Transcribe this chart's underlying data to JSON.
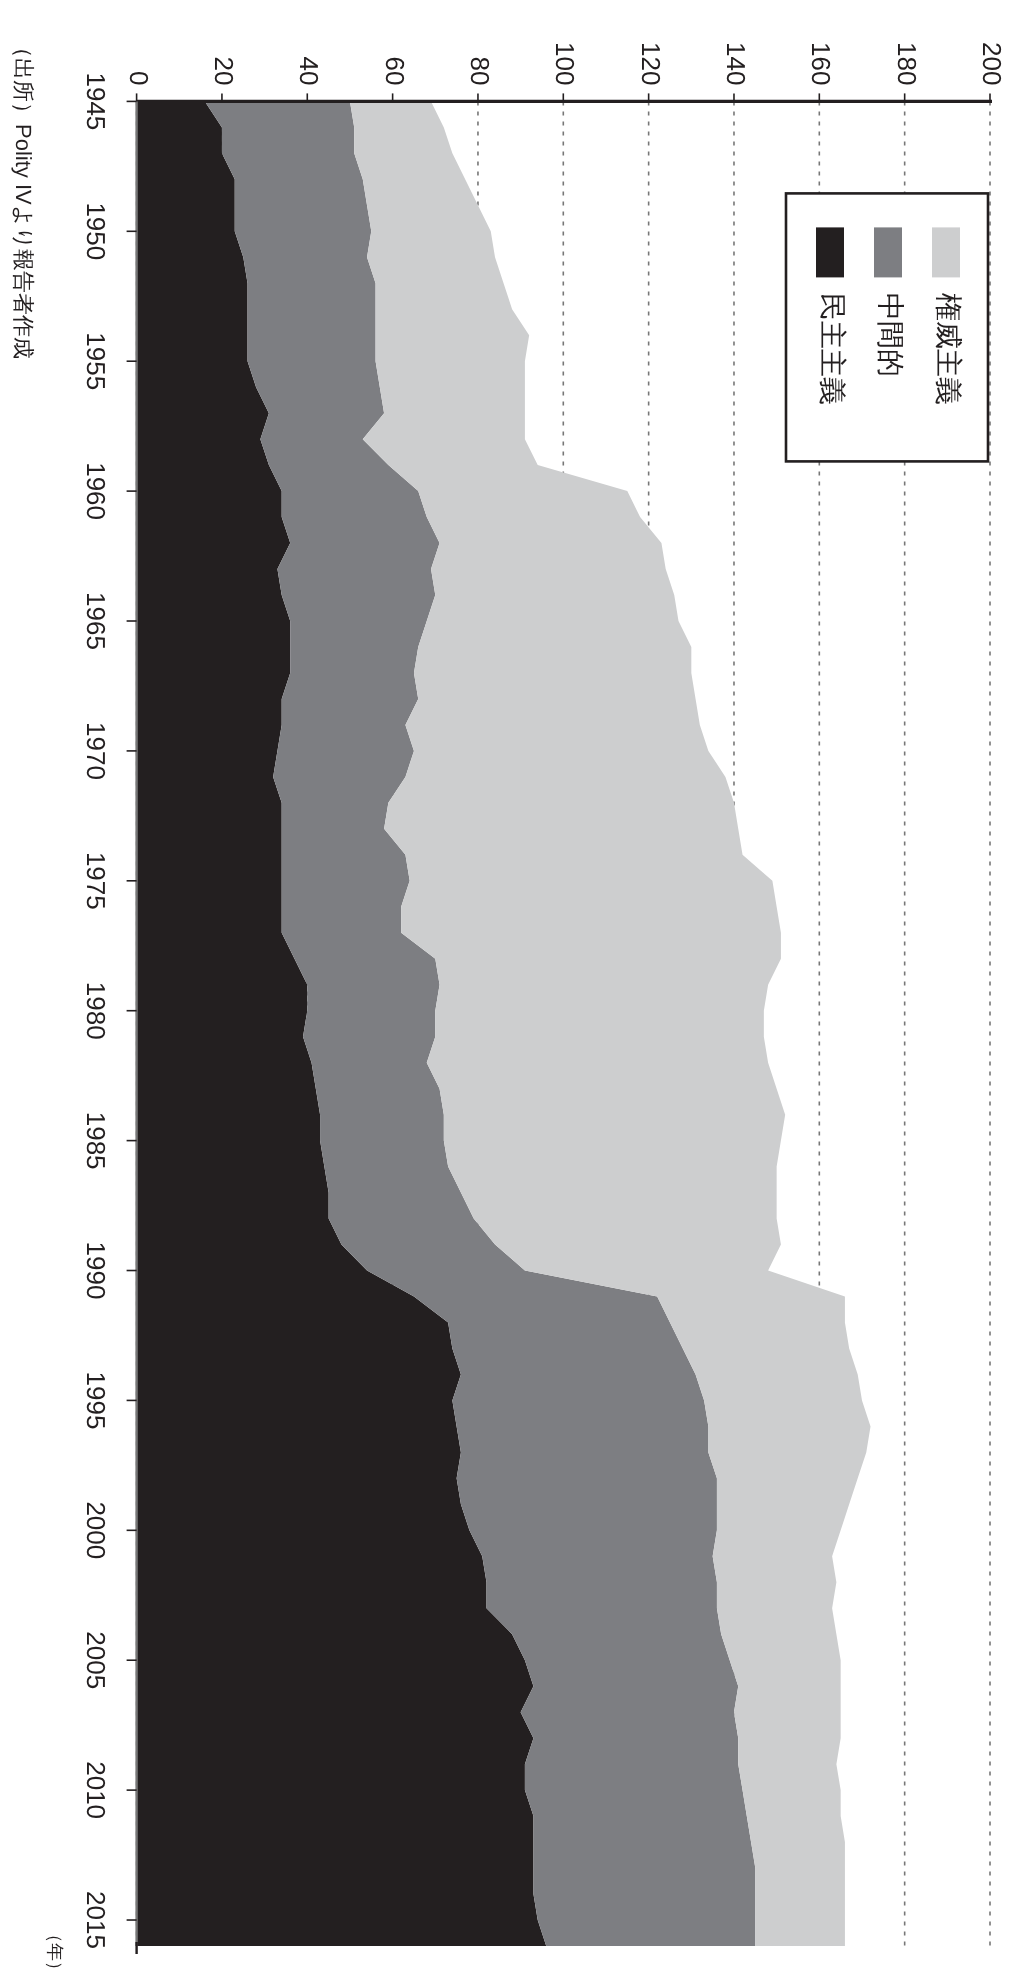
{
  "chart_data": {
    "type": "area",
    "stacked": true,
    "ylabel": "（年）",
    "annotations": [
      "（出所）Polity IVより報告者作成"
    ],
    "x": [
      1945,
      1946,
      1947,
      1948,
      1949,
      1950,
      1951,
      1952,
      1953,
      1954,
      1955,
      1956,
      1957,
      1958,
      1959,
      1960,
      1961,
      1962,
      1963,
      1964,
      1965,
      1966,
      1967,
      1968,
      1969,
      1970,
      1971,
      1972,
      1973,
      1974,
      1975,
      1976,
      1977,
      1978,
      1979,
      1980,
      1981,
      1982,
      1983,
      1984,
      1985,
      1986,
      1987,
      1988,
      1989,
      1990,
      1991,
      1992,
      1993,
      1994,
      1995,
      1996,
      1997,
      1998,
      1999,
      2000,
      2001,
      2002,
      2003,
      2004,
      2005,
      2006,
      2007,
      2008,
      2009,
      2010,
      2011,
      2012,
      2013,
      2014,
      2015,
      2016
    ],
    "orientation": "horizontal",
    "ylim": [
      2016,
      1945
    ],
    "yticks": [
      1945,
      1950,
      1955,
      1960,
      1965,
      1970,
      1975,
      1980,
      1985,
      1990,
      1995,
      2000,
      2005,
      2010,
      2015
    ],
    "xlim": [
      0,
      200
    ],
    "xticks": [
      0,
      20,
      40,
      60,
      80,
      100,
      120,
      140,
      160,
      180,
      200
    ],
    "grid": "x",
    "legend": "top right",
    "series": [
      {
        "name": "民主主義",
        "color": "#231f20",
        "values": [
          16,
          20,
          20,
          23,
          23,
          23,
          25,
          26,
          26,
          26,
          26,
          28,
          31,
          29,
          31,
          34,
          34,
          36,
          33,
          34,
          36,
          36,
          36,
          34,
          34,
          33,
          32,
          34,
          34,
          34,
          34,
          34,
          34,
          37,
          40,
          40,
          39,
          41,
          42,
          43,
          43,
          44,
          45,
          45,
          48,
          54,
          65,
          73,
          74,
          76,
          74,
          75,
          76,
          75,
          76,
          78,
          81,
          82,
          82,
          88,
          91,
          93,
          90,
          93,
          91,
          91,
          93,
          93,
          93,
          93,
          94,
          96
        ]
      },
      {
        "name": "中間的",
        "color": "#7d7e82",
        "values": [
          34,
          31,
          31,
          30,
          31,
          32,
          29,
          30,
          30,
          30,
          30,
          29,
          27,
          24,
          28,
          32,
          34,
          35,
          36,
          36,
          32,
          30,
          29,
          32,
          29,
          32,
          31,
          25,
          24,
          29,
          30,
          28,
          28,
          33,
          31,
          30,
          31,
          27,
          29,
          29,
          29,
          29,
          31,
          34,
          36,
          37,
          57,
          52,
          54,
          55,
          59,
          59,
          58,
          61,
          60,
          58,
          54,
          54,
          54,
          49,
          48,
          48,
          50,
          48,
          50,
          51,
          50,
          51,
          52,
          52,
          51,
          49
        ]
      },
      {
        "name": "権威主義",
        "color": "#cdcecf",
        "values": [
          19,
          21,
          23,
          24,
          26,
          28,
          30,
          30,
          32,
          36,
          35,
          34,
          33,
          38,
          35,
          49,
          50,
          52,
          55,
          56,
          59,
          64,
          65,
          65,
          69,
          69,
          75,
          81,
          83,
          79,
          85,
          88,
          89,
          81,
          77,
          77,
          77,
          80,
          79,
          80,
          79,
          77,
          74,
          71,
          67,
          57,
          44,
          41,
          39,
          38,
          37,
          38,
          37,
          33,
          31,
          29,
          28,
          28,
          27,
          27,
          26,
          24,
          25,
          24,
          23,
          23,
          22,
          22,
          21,
          21,
          21,
          21
        ]
      }
    ]
  }
}
